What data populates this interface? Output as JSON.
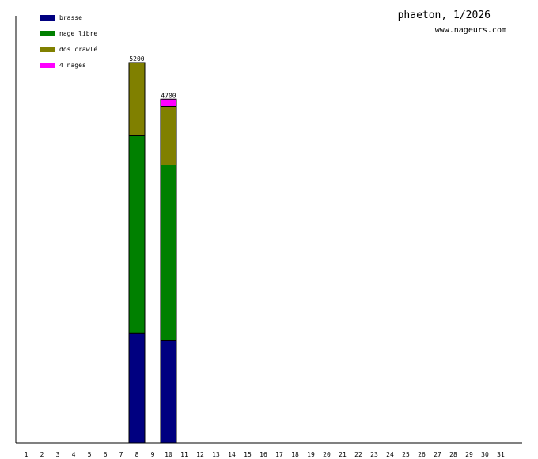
{
  "chart_data": {
    "type": "bar",
    "stacked": true,
    "title": "phaeton, 1/2026",
    "subtitle": "www.nageurs.com",
    "categories": [
      "1",
      "2",
      "3",
      "4",
      "5",
      "6",
      "7",
      "8",
      "9",
      "10",
      "11",
      "12",
      "13",
      "14",
      "15",
      "16",
      "17",
      "18",
      "19",
      "20",
      "21",
      "22",
      "23",
      "24",
      "25",
      "26",
      "27",
      "28",
      "29",
      "30",
      "31"
    ],
    "series": [
      {
        "name": "brasse",
        "color": "#000080",
        "values": [
          0,
          0,
          0,
          0,
          0,
          0,
          0,
          1500,
          0,
          1400,
          0,
          0,
          0,
          0,
          0,
          0,
          0,
          0,
          0,
          0,
          0,
          0,
          0,
          0,
          0,
          0,
          0,
          0,
          0,
          0,
          0
        ]
      },
      {
        "name": "nage libre",
        "color": "#008000",
        "values": [
          0,
          0,
          0,
          0,
          0,
          0,
          0,
          2700,
          0,
          2400,
          0,
          0,
          0,
          0,
          0,
          0,
          0,
          0,
          0,
          0,
          0,
          0,
          0,
          0,
          0,
          0,
          0,
          0,
          0,
          0,
          0
        ]
      },
      {
        "name": "dos crawlé",
        "color": "#808000",
        "values": [
          0,
          0,
          0,
          0,
          0,
          0,
          0,
          1000,
          0,
          800,
          0,
          0,
          0,
          0,
          0,
          0,
          0,
          0,
          0,
          0,
          0,
          0,
          0,
          0,
          0,
          0,
          0,
          0,
          0,
          0,
          0
        ]
      },
      {
        "name": "4 nages",
        "color": "#ff00ff",
        "values": [
          0,
          0,
          0,
          0,
          0,
          0,
          0,
          0,
          0,
          100,
          0,
          0,
          0,
          0,
          0,
          0,
          0,
          0,
          0,
          0,
          0,
          0,
          0,
          0,
          0,
          0,
          0,
          0,
          0,
          0,
          0
        ]
      }
    ],
    "totals": [
      {
        "category": "8",
        "total": "5200"
      },
      {
        "category": "10",
        "total": "4700"
      }
    ],
    "ylim": [
      0,
      5200
    ],
    "grid": false,
    "legend": "top-left"
  }
}
